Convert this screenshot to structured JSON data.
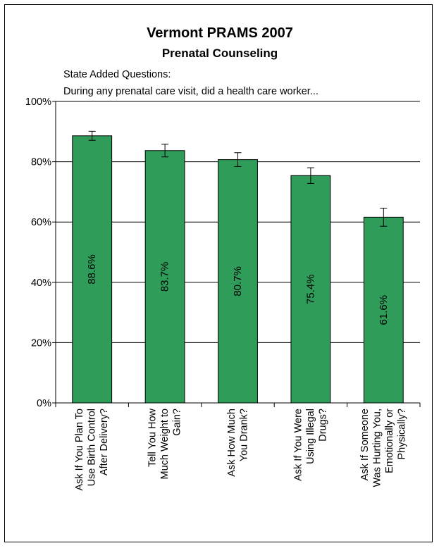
{
  "chart_data": {
    "type": "bar",
    "title": "Vermont PRAMS 2007",
    "subtitle": "Prenatal Counseling",
    "annotations": [
      "State Added Questions:",
      "During any prenatal care visit, did a health care worker..."
    ],
    "categories": [
      [
        "Ask If You Plan To",
        "Use Birth Control",
        "After Delivery?"
      ],
      [
        "Tell You How",
        "Much Weight to",
        "Gain?"
      ],
      [
        "Ask How Much",
        "You Drank?"
      ],
      [
        "Ask If You Were",
        "Using Illegal",
        "Drugs?"
      ],
      [
        "Ask If Someone",
        "Was Hurting You,",
        "Emotionally or",
        "Physically?"
      ]
    ],
    "values": [
      88.6,
      83.7,
      80.7,
      75.4,
      61.6
    ],
    "data_labels": [
      "88.6%",
      "83.7%",
      "80.7%",
      "75.4%",
      "61.6%"
    ],
    "error_bars": [
      [
        87.1,
        90.1
      ],
      [
        81.6,
        85.8
      ],
      [
        78.4,
        83.0
      ],
      [
        72.8,
        78.0
      ],
      [
        58.6,
        64.6
      ]
    ],
    "ylim": [
      0,
      100
    ],
    "yticks": [
      0,
      20,
      40,
      60,
      80,
      100
    ],
    "ytick_labels": [
      "0%",
      "20%",
      "40%",
      "60%",
      "80%",
      "100%"
    ],
    "grid": true,
    "bar_color": "#2f9c5a",
    "xlabel": "",
    "ylabel": ""
  }
}
